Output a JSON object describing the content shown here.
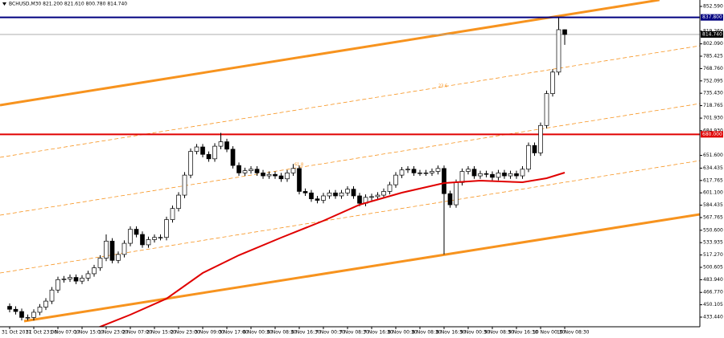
{
  "chart_data": {
    "type": "candlestick",
    "title": "BCHUSD,M30  821.200 821.610 800.780 814.740",
    "categories": [
      "31 Oct 2017",
      null,
      null,
      null,
      "31 Oct 23:00",
      null,
      null,
      null,
      "1 Nov 07:00",
      null,
      null,
      null,
      "1 Nov 15:00",
      null,
      null,
      null,
      "1 Nov 23:00",
      null,
      null,
      null,
      "2 Nov 07:00",
      null,
      null,
      null,
      "2 Nov 15:00",
      null,
      null,
      null,
      "2 Nov 23:00",
      null,
      null,
      null,
      "3 Nov 09:00",
      null,
      null,
      null,
      "3 Nov 17:00",
      null,
      null,
      null,
      "6 Nov 00:30",
      null,
      null,
      null,
      "6 Nov 08:30",
      null,
      null,
      null,
      "6 Nov 16:30",
      null,
      null,
      null,
      "7 Nov 00:30",
      null,
      null,
      null,
      "7 Nov 08:30",
      null,
      null,
      null,
      "7 Nov 16:30",
      null,
      null,
      null,
      "8 Nov 00:30",
      null,
      null,
      null,
      "8 Nov 08:30",
      null,
      null,
      null,
      "8 Nov 16:30",
      null,
      null,
      null,
      "9 Nov 00:30",
      null,
      null,
      null,
      "9 Nov 08:30",
      null,
      null,
      null,
      "9 Nov 16:30",
      null,
      null,
      null,
      "10 Nov 00:30",
      null,
      null,
      null,
      "10 Nov 08:30"
    ],
    "open": [
      448,
      444,
      441,
      433,
      433,
      440,
      447,
      455,
      470,
      484,
      485,
      487,
      482,
      486,
      492,
      500,
      513,
      536,
      510,
      518,
      533,
      552,
      545,
      531,
      538,
      541,
      541,
      565,
      580,
      598,
      625,
      657,
      663,
      653,
      647,
      664,
      670,
      660,
      638,
      628,
      631,
      633,
      628,
      624,
      626,
      624,
      620,
      628,
      634,
      603,
      601,
      593,
      591,
      597,
      601,
      597,
      601,
      606,
      597,
      587,
      595,
      596,
      598,
      603,
      612,
      625,
      632,
      633,
      628,
      628,
      628,
      630,
      634,
      600,
      585,
      615,
      630,
      633,
      624,
      627,
      626,
      622,
      628,
      624,
      627,
      624,
      633,
      665,
      655,
      692,
      735,
      764,
      821.2
    ],
    "high": [
      452,
      448,
      445,
      437,
      444,
      451,
      459,
      474,
      488,
      489,
      491,
      491,
      490,
      496,
      504,
      517,
      545,
      540,
      522,
      537,
      556,
      556,
      549,
      542,
      545,
      545,
      569,
      584,
      602,
      629,
      661,
      667,
      667,
      657,
      668,
      682,
      674,
      664,
      642,
      635,
      637,
      637,
      632,
      630,
      630,
      628,
      632,
      640,
      638,
      607,
      605,
      597,
      601,
      605,
      605,
      605,
      610,
      610,
      601,
      599,
      600,
      602,
      607,
      616,
      629,
      636,
      637,
      637,
      632,
      632,
      634,
      638,
      638,
      604,
      619,
      634,
      637,
      637,
      631,
      631,
      630,
      632,
      632,
      631,
      631,
      637,
      669,
      669,
      696,
      739,
      768,
      837.8,
      821.61
    ],
    "low": [
      440,
      437,
      429,
      429,
      429,
      436,
      443,
      451,
      466,
      480,
      481,
      478,
      478,
      482,
      488,
      496,
      509,
      506,
      506,
      514,
      529,
      541,
      527,
      527,
      534,
      537,
      537,
      561,
      576,
      594,
      621,
      653,
      649,
      643,
      643,
      660,
      656,
      634,
      624,
      624,
      627,
      624,
      620,
      620,
      620,
      616,
      616,
      624,
      599,
      597,
      589,
      587,
      587,
      593,
      593,
      593,
      597,
      593,
      583,
      583,
      591,
      592,
      594,
      599,
      608,
      621,
      628,
      624,
      624,
      624,
      624,
      626,
      518,
      581,
      581,
      611,
      626,
      620,
      620,
      622,
      618,
      618,
      620,
      620,
      620,
      620,
      629,
      651,
      651,
      688,
      731,
      760,
      800.78
    ],
    "close": [
      444,
      441,
      433,
      433,
      440,
      447,
      455,
      470,
      484,
      485,
      487,
      482,
      486,
      492,
      500,
      513,
      536,
      510,
      518,
      533,
      552,
      545,
      531,
      538,
      541,
      541,
      565,
      580,
      598,
      625,
      657,
      663,
      653,
      647,
      664,
      670,
      660,
      638,
      628,
      631,
      633,
      628,
      624,
      626,
      624,
      620,
      628,
      634,
      603,
      601,
      593,
      591,
      597,
      601,
      597,
      601,
      606,
      597,
      587,
      595,
      596,
      598,
      603,
      612,
      625,
      632,
      633,
      628,
      628,
      628,
      630,
      634,
      600,
      585,
      615,
      630,
      633,
      624,
      627,
      626,
      622,
      628,
      624,
      627,
      624,
      633,
      665,
      655,
      692,
      735,
      764,
      821.2,
      814.74
    ],
    "up_color": "#ffffff",
    "down_color": "#000000",
    "wick_color": "#000000",
    "lines": [
      {
        "color": "#e00000",
        "x": [
          14,
          20,
          26,
          32,
          38,
          45,
          52,
          58,
          65,
          72,
          78,
          85,
          89,
          92
        ],
        "values": [
          417.2,
          436.7,
          458.4,
          493.0,
          516.9,
          540.7,
          563.4,
          585.1,
          601.3,
          614.3,
          617.6,
          615.4,
          620.8,
          628.4
        ]
      }
    ],
    "trend_lines": [
      {
        "color": "#f7931e",
        "style": "solid",
        "x": [
          -1.6,
          107.7
        ],
        "values": [
          719.4,
          861.3
        ]
      },
      {
        "color": "#f7931e",
        "style": "dashed",
        "x": [
          -1.6,
          114.4
        ],
        "values": [
          649.0,
          799.5
        ]
      },
      {
        "color": "#f7931e",
        "style": "dashed",
        "x": [
          -1.6,
          114.4
        ],
        "values": [
          571.0,
          721.5
        ]
      },
      {
        "color": "#f7931e",
        "style": "dashed",
        "x": [
          -1.6,
          114.4
        ],
        "values": [
          493.0,
          644.6
        ]
      },
      {
        "color": "#f7931e",
        "style": "solid",
        "x": [
          2.4,
          114.4
        ],
        "values": [
          428.0,
          572.1
        ]
      }
    ],
    "annotations": [
      "23.6",
      "61.8"
    ],
    "levels": [
      {
        "value": 837.8,
        "label": "837.800",
        "color": "#000080"
      },
      {
        "value": 814.74,
        "label": "814.740",
        "color": "#000000"
      },
      {
        "value": 680,
        "label": "680.000",
        "color": "#e00000"
      }
    ],
    "xlim": [
      -1.6,
      114.4
    ],
    "ylim": [
      420.44,
      861.25
    ],
    "yticks": [
      {
        "value": 852.59,
        "label": "852.590"
      },
      {
        "value": 819.26,
        "label": "819.260"
      },
      {
        "value": 802.09,
        "label": "802.090"
      },
      {
        "value": 785.425,
        "label": "785.425"
      },
      {
        "value": 768.76,
        "label": "768.760"
      },
      {
        "value": 752.095,
        "label": "752.095"
      },
      {
        "value": 735.43,
        "label": "735.430"
      },
      {
        "value": 718.765,
        "label": "718.765"
      },
      {
        "value": 701.93,
        "label": "701.930"
      },
      {
        "value": 684.93,
        "label": "684.930"
      },
      {
        "value": 651.6,
        "label": "651.600"
      },
      {
        "value": 634.435,
        "label": "634.435"
      },
      {
        "value": 617.765,
        "label": "617.765"
      },
      {
        "value": 601.1,
        "label": "601.100"
      },
      {
        "value": 584.435,
        "label": "584.435"
      },
      {
        "value": 567.765,
        "label": "567.765"
      },
      {
        "value": 550.6,
        "label": "550.600"
      },
      {
        "value": 533.935,
        "label": "533.935"
      },
      {
        "value": 517.27,
        "label": "517.270"
      },
      {
        "value": 500.605,
        "label": "500.605"
      },
      {
        "value": 483.94,
        "label": "483.940"
      },
      {
        "value": 466.77,
        "label": "466.770"
      },
      {
        "value": 450.105,
        "label": "450.105"
      },
      {
        "value": 433.44,
        "label": "433.440"
      }
    ],
    "grid": false
  }
}
